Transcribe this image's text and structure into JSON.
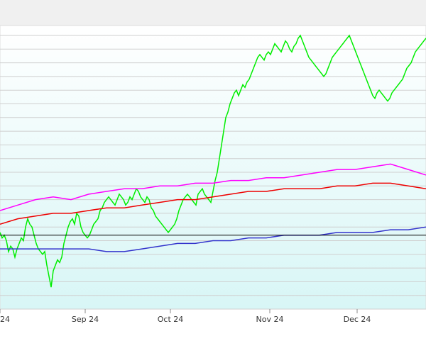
{
  "chart_data": {
    "type": "line",
    "title": "",
    "xlabel": "",
    "ylabel": "",
    "x_tick_labels": [
      "24",
      "Sep 24",
      "Oct 24",
      "Nov 24",
      "Dec 24"
    ],
    "y_range": [
      0,
      100
    ],
    "grid": true,
    "legend": "none",
    "reference_line": {
      "y": 27,
      "color": "#000000"
    },
    "series": [
      {
        "color": "#00ee00",
        "x": [
          0,
          3,
          6,
          9,
          12,
          15,
          18,
          21,
          24,
          27,
          30,
          33,
          36,
          39,
          42,
          45,
          48,
          51,
          54,
          57,
          60,
          63,
          66,
          69,
          72,
          75,
          78,
          81,
          84,
          87,
          90,
          93,
          96,
          99,
          102,
          105,
          108,
          111,
          114,
          117,
          120,
          123,
          126,
          129,
          132,
          135,
          138,
          141,
          144,
          147,
          150,
          153,
          156,
          159,
          162,
          165,
          168,
          171,
          174,
          177,
          180,
          183,
          186,
          189,
          192,
          195,
          198,
          201,
          204,
          207,
          210,
          213,
          216,
          219,
          222,
          225,
          228,
          231,
          234,
          237,
          240,
          243,
          246,
          249,
          252,
          255,
          258,
          261,
          264,
          267,
          270,
          273,
          276,
          279,
          282,
          285,
          288,
          291,
          294,
          297,
          300,
          303,
          306,
          309,
          312,
          315,
          318,
          321,
          324,
          327,
          330,
          333,
          336,
          339,
          342,
          345,
          348,
          351,
          354,
          357,
          360,
          363,
          366,
          369,
          372,
          375,
          378,
          381,
          384,
          387,
          390,
          393,
          396,
          399,
          402,
          405,
          408,
          411,
          414,
          417,
          420,
          423,
          426,
          429,
          432,
          435,
          438,
          441,
          444,
          447,
          450,
          453,
          456,
          459,
          462,
          465,
          468,
          471,
          474,
          477,
          480,
          483,
          486,
          489,
          492,
          495,
          498,
          501,
          504,
          507,
          510,
          513,
          516,
          519,
          522,
          525,
          528,
          531,
          534,
          537,
          540,
          543,
          546,
          549,
          552,
          555,
          558,
          561,
          564,
          567,
          570,
          573,
          576,
          579,
          582,
          585,
          588,
          591,
          594,
          597,
          600
        ],
        "values": [
          28,
          26,
          27,
          25,
          21,
          23,
          22,
          19,
          22,
          24,
          26,
          25,
          30,
          33,
          31,
          30,
          27,
          24,
          22,
          21,
          20,
          21,
          16,
          12,
          8,
          14,
          16,
          18,
          17,
          19,
          24,
          27,
          30,
          32,
          33,
          31,
          35,
          34,
          30,
          28,
          27,
          26,
          27,
          29,
          31,
          32,
          33,
          36,
          37,
          39,
          40,
          41,
          40,
          39,
          38,
          40,
          42,
          41,
          40,
          38,
          39,
          41,
          40,
          42,
          44,
          43,
          41,
          40,
          39,
          41,
          40,
          37,
          36,
          34,
          33,
          32,
          31,
          30,
          29,
          28,
          29,
          30,
          31,
          33,
          36,
          38,
          40,
          41,
          42,
          41,
          40,
          39,
          38,
          42,
          43,
          44,
          42,
          41,
          40,
          39,
          43,
          47,
          50,
          55,
          60,
          65,
          70,
          72,
          75,
          77,
          79,
          80,
          78,
          80,
          82,
          81,
          83,
          84,
          86,
          88,
          90,
          92,
          93,
          92,
          91,
          93,
          94,
          93,
          95,
          97,
          96,
          95,
          94,
          96,
          98,
          97,
          95,
          94,
          96,
          97,
          99,
          100,
          98,
          96,
          94,
          92,
          91,
          90,
          89,
          88,
          87,
          86,
          85,
          86,
          88,
          90,
          92,
          93,
          94,
          95,
          96,
          97,
          98,
          99,
          100,
          98,
          96,
          94,
          92,
          90,
          88,
          86,
          84,
          82,
          80,
          78,
          77,
          79,
          80,
          79,
          78,
          77,
          76,
          77,
          79,
          80,
          81,
          82,
          83,
          84,
          86,
          88,
          89,
          90,
          92,
          94,
          95,
          96,
          97,
          98,
          99
        ]
      },
      {
        "color": "#ff00ff",
        "x": [
          0,
          25,
          50,
          75,
          100,
          125,
          150,
          175,
          200,
          225,
          250,
          275,
          300,
          325,
          350,
          375,
          400,
          425,
          450,
          475,
          500,
          525,
          550,
          575,
          600
        ],
        "values": [
          36,
          38,
          40,
          41,
          40,
          42,
          43,
          44,
          44,
          45,
          45,
          46,
          46,
          47,
          47,
          48,
          48,
          49,
          50,
          51,
          51,
          52,
          53,
          51,
          49
        ]
      },
      {
        "color": "#ee0000",
        "x": [
          0,
          25,
          50,
          75,
          100,
          125,
          150,
          175,
          200,
          225,
          250,
          275,
          300,
          325,
          350,
          375,
          400,
          425,
          450,
          475,
          500,
          525,
          550,
          575,
          600
        ],
        "values": [
          31,
          33,
          34,
          35,
          35,
          36,
          37,
          37,
          38,
          39,
          40,
          40,
          41,
          42,
          43,
          43,
          44,
          44,
          44,
          45,
          45,
          46,
          46,
          45,
          44
        ]
      },
      {
        "color": "#3333cc",
        "x": [
          0,
          25,
          50,
          75,
          100,
          125,
          150,
          175,
          200,
          225,
          250,
          275,
          300,
          325,
          350,
          375,
          400,
          425,
          450,
          475,
          500,
          525,
          550,
          575,
          600
        ],
        "values": [
          22,
          22,
          22,
          22,
          22,
          22,
          21,
          21,
          22,
          23,
          24,
          24,
          25,
          25,
          26,
          26,
          27,
          27,
          27,
          28,
          28,
          28,
          29,
          29,
          30
        ]
      }
    ]
  }
}
